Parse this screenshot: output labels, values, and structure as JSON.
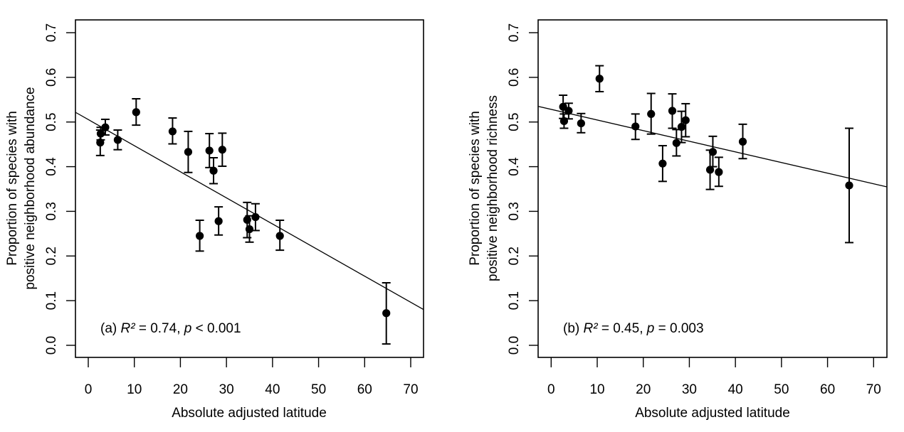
{
  "chart_data": [
    {
      "type": "scatter",
      "panel": "a",
      "title": "",
      "xlabel": "Absolute adjusted latitude",
      "ylabel": [
        "Proportion of species with",
        "positive neighborhood abundance"
      ],
      "xlim": [
        -3,
        72.8
      ],
      "ylim": [
        -0.027,
        0.73
      ],
      "xticks": [
        0,
        10,
        20,
        30,
        40,
        50,
        60,
        70
      ],
      "yticks": [
        0.0,
        0.1,
        0.2,
        0.3,
        0.4,
        0.5,
        0.6,
        0.7
      ],
      "ytick_labels": [
        "0.0",
        "0.1",
        "0.2",
        "0.3",
        "0.4",
        "0.5",
        "0.6",
        "0.7"
      ],
      "grid": false,
      "annotation": {
        "prefix": "(a) ",
        "r2_label": "R²",
        "r2_text": " = 0.74, ",
        "p_label": "p",
        "p_text": " < 0.001"
      },
      "regression_line": {
        "x": [
          -3,
          72.8
        ],
        "y": [
          0.523,
          0.08
        ]
      },
      "points": [
        {
          "x": 2.6,
          "y": 0.454,
          "lo": 0.425,
          "hi": 0.482
        },
        {
          "x": 2.7,
          "y": 0.474,
          "lo": 0.46,
          "hi": 0.488
        },
        {
          "x": 3.7,
          "y": 0.488,
          "lo": 0.471,
          "hi": 0.506
        },
        {
          "x": 6.4,
          "y": 0.46,
          "lo": 0.438,
          "hi": 0.482
        },
        {
          "x": 10.4,
          "y": 0.522,
          "lo": 0.493,
          "hi": 0.552
        },
        {
          "x": 18.3,
          "y": 0.479,
          "lo": 0.451,
          "hi": 0.509
        },
        {
          "x": 21.7,
          "y": 0.433,
          "lo": 0.387,
          "hi": 0.479
        },
        {
          "x": 24.2,
          "y": 0.245,
          "lo": 0.211,
          "hi": 0.28
        },
        {
          "x": 26.3,
          "y": 0.436,
          "lo": 0.398,
          "hi": 0.474
        },
        {
          "x": 27.2,
          "y": 0.391,
          "lo": 0.362,
          "hi": 0.42
        },
        {
          "x": 28.3,
          "y": 0.278,
          "lo": 0.247,
          "hi": 0.31
        },
        {
          "x": 29.1,
          "y": 0.438,
          "lo": 0.401,
          "hi": 0.475
        },
        {
          "x": 34.5,
          "y": 0.281,
          "lo": 0.241,
          "hi": 0.32
        },
        {
          "x": 35.0,
          "y": 0.26,
          "lo": 0.231,
          "hi": 0.29
        },
        {
          "x": 36.3,
          "y": 0.287,
          "lo": 0.257,
          "hi": 0.317
        },
        {
          "x": 41.6,
          "y": 0.245,
          "lo": 0.213,
          "hi": 0.28
        },
        {
          "x": 64.7,
          "y": 0.072,
          "lo": 0.003,
          "hi": 0.14
        }
      ]
    },
    {
      "type": "scatter",
      "panel": "b",
      "title": "",
      "xlabel": "Absolute adjusted latitude",
      "ylabel": [
        "Proportion of species with",
        "positive neighborhood richness"
      ],
      "xlim": [
        -2.8,
        72.8
      ],
      "ylim": [
        -0.027,
        0.73
      ],
      "xticks": [
        0,
        10,
        20,
        30,
        40,
        50,
        60,
        70
      ],
      "yticks": [
        0.0,
        0.1,
        0.2,
        0.3,
        0.4,
        0.5,
        0.6,
        0.7
      ],
      "ytick_labels": [
        "0.0",
        "0.1",
        "0.2",
        "0.3",
        "0.4",
        "0.5",
        "0.6",
        "0.7"
      ],
      "grid": false,
      "annotation": {
        "prefix": "(b) ",
        "r2_label": "R²",
        "r2_text": " = 0.45, ",
        "p_label": "p",
        "p_text": " = 0.003"
      },
      "regression_line": {
        "x": [
          -2.8,
          72.8
        ],
        "y": [
          0.535,
          0.355
        ]
      },
      "points": [
        {
          "x": 2.6,
          "y": 0.534,
          "lo": 0.508,
          "hi": 0.56
        },
        {
          "x": 2.8,
          "y": 0.502,
          "lo": 0.486,
          "hi": 0.518
        },
        {
          "x": 3.8,
          "y": 0.525,
          "lo": 0.507,
          "hi": 0.542
        },
        {
          "x": 6.5,
          "y": 0.497,
          "lo": 0.476,
          "hi": 0.519
        },
        {
          "x": 10.5,
          "y": 0.597,
          "lo": 0.568,
          "hi": 0.626
        },
        {
          "x": 18.3,
          "y": 0.49,
          "lo": 0.461,
          "hi": 0.518
        },
        {
          "x": 21.7,
          "y": 0.518,
          "lo": 0.473,
          "hi": 0.564
        },
        {
          "x": 24.2,
          "y": 0.407,
          "lo": 0.367,
          "hi": 0.447
        },
        {
          "x": 26.3,
          "y": 0.525,
          "lo": 0.486,
          "hi": 0.563
        },
        {
          "x": 27.2,
          "y": 0.453,
          "lo": 0.424,
          "hi": 0.483
        },
        {
          "x": 28.3,
          "y": 0.489,
          "lo": 0.454,
          "hi": 0.524
        },
        {
          "x": 29.2,
          "y": 0.504,
          "lo": 0.467,
          "hi": 0.541
        },
        {
          "x": 34.5,
          "y": 0.393,
          "lo": 0.349,
          "hi": 0.437
        },
        {
          "x": 35.1,
          "y": 0.433,
          "lo": 0.4,
          "hi": 0.468
        },
        {
          "x": 36.4,
          "y": 0.388,
          "lo": 0.356,
          "hi": 0.421
        },
        {
          "x": 41.6,
          "y": 0.456,
          "lo": 0.418,
          "hi": 0.495
        },
        {
          "x": 64.7,
          "y": 0.358,
          "lo": 0.23,
          "hi": 0.486
        }
      ]
    }
  ]
}
